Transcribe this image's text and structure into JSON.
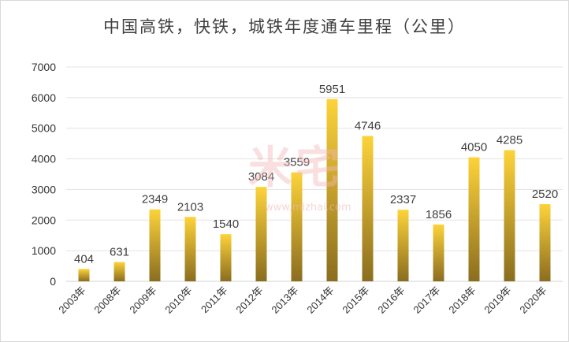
{
  "chart_data": {
    "type": "bar",
    "title": "中国高铁，快铁，城铁年度通车里程（公里）",
    "categories": [
      "2003年",
      "2008年",
      "2009年",
      "2010年",
      "2011年",
      "2012年",
      "2013年",
      "2014年",
      "2015年",
      "2016年",
      "2017年",
      "2018年",
      "2019年",
      "2020年"
    ],
    "values": [
      404,
      631,
      2349,
      2103,
      1540,
      3084,
      3559,
      5951,
      4746,
      2337,
      1856,
      4050,
      4285,
      2520
    ],
    "ylim": [
      0,
      7000
    ],
    "yticks": [
      0,
      1000,
      2000,
      3000,
      4000,
      5000,
      6000,
      7000
    ],
    "grid": true,
    "legend": "none",
    "bar_gradient": [
      "#fdd33a",
      "#8a6d1f"
    ]
  },
  "watermark": {
    "text": "米宅",
    "url": "www.mizhai.com"
  }
}
